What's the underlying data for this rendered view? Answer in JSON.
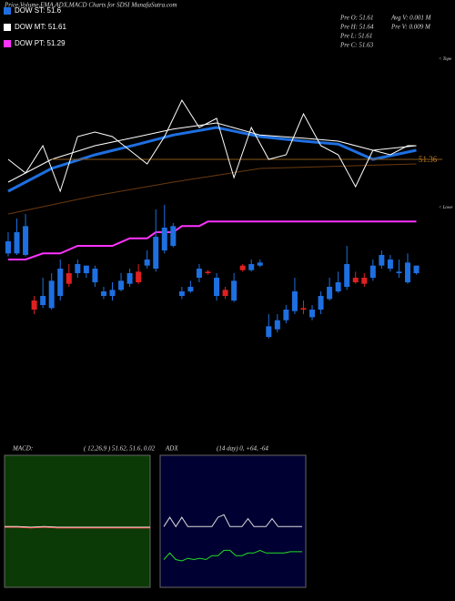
{
  "header": {
    "title": "Price,Volume,EMA,ADX,MACD Charts for SDSI MunafaSutra.com",
    "stats": [
      "Pre  O: 51.61",
      "Pre  H: 51.64",
      "Pre  L: 51.61",
      "Pre  C: 51.63",
      "Avg V: 0.001 M",
      "Pre  V: 0.009 M"
    ]
  },
  "chart_data": [
    {
      "type": "candlestick",
      "ylim": [
        49.94,
        52.52
      ],
      "xlim": [
        -0.94,
        50.4
      ],
      "annotations": [
        "< Tope",
        "< Lowe",
        "51.36"
      ],
      "candles": {
        "up_color": "#1e6fe0",
        "down_color": "#e02020",
        "open": [
          51.09,
          51.09,
          51.08,
          50.78,
          50.75,
          50.73,
          50.81,
          50.96,
          50.96,
          50.96,
          50.9,
          50.81,
          50.81,
          50.85,
          50.89,
          50.97,
          51.01,
          50.99,
          51.11,
          51.14,
          50.81,
          50.84,
          50.93,
          50.97,
          50.81,
          50.85,
          50.78,
          51.01,
          50.98,
          51.01,
          50.54,
          50.59,
          50.65,
          50.71,
          50.73,
          50.67,
          50.72,
          50.79,
          50.84,
          50.87,
          50.93,
          50.93,
          50.93,
          51.01,
          50.99,
          50.96,
          50.9,
          50.96
        ],
        "high": [
          51.23,
          51.32,
          51.35,
          50.81,
          50.93,
          50.96,
          51.05,
          51.02,
          51.05,
          51.01,
          51.01,
          50.87,
          50.9,
          50.96,
          50.99,
          51.02,
          51.11,
          51.38,
          51.41,
          51.29,
          50.87,
          50.91,
          51.02,
          50.98,
          50.96,
          50.87,
          50.96,
          51.02,
          51.05,
          51.05,
          50.69,
          50.69,
          50.75,
          50.93,
          50.78,
          50.75,
          50.84,
          50.93,
          50.97,
          51.14,
          50.97,
          50.96,
          51.05,
          51.11,
          51.08,
          51.05,
          51.09,
          51.01
        ],
        "low": [
          51.07,
          51.08,
          51.07,
          50.69,
          50.73,
          50.72,
          50.78,
          50.87,
          50.93,
          50.93,
          50.87,
          50.79,
          50.78,
          50.84,
          50.87,
          50.89,
          50.99,
          50.97,
          51.09,
          51.13,
          50.79,
          50.83,
          50.9,
          50.95,
          50.78,
          50.79,
          50.77,
          50.97,
          50.97,
          51.0,
          50.53,
          50.57,
          50.63,
          50.69,
          50.69,
          50.65,
          50.69,
          50.78,
          50.83,
          50.85,
          50.89,
          50.87,
          50.91,
          50.99,
          50.97,
          50.93,
          50.89,
          50.95
        ],
        "close": [
          51.17,
          51.23,
          51.27,
          50.72,
          50.81,
          50.91,
          50.99,
          50.89,
          51.02,
          51.01,
          50.99,
          50.84,
          50.85,
          50.91,
          50.96,
          50.9,
          51.05,
          51.2,
          51.26,
          51.27,
          50.84,
          50.87,
          50.99,
          50.96,
          50.93,
          50.81,
          50.91,
          50.98,
          51.02,
          51.03,
          50.61,
          50.65,
          50.72,
          50.84,
          50.72,
          50.72,
          50.81,
          50.87,
          50.9,
          51.02,
          50.9,
          50.89,
          51.01,
          51.08,
          51.05,
          50.97,
          51.03,
          51.01
        ]
      },
      "series": [
        {
          "name": "DOW ST: 51.6",
          "color": "#1e6fe0",
          "width": 3,
          "x": [
            0,
            5,
            10,
            15,
            19,
            24,
            29,
            34,
            38,
            42,
            47
          ],
          "values": [
            51.5,
            51.65,
            51.74,
            51.81,
            51.87,
            51.92,
            51.86,
            51.83,
            51.81,
            51.71,
            51.77
          ]
        },
        {
          "name": "DOW MT: 51.61",
          "color": "#ffffff",
          "width": 1,
          "x": [
            0,
            5,
            10,
            15,
            19,
            24,
            29,
            34,
            38,
            42,
            47
          ],
          "values": [
            51.56,
            51.71,
            51.8,
            51.86,
            51.91,
            51.95,
            51.87,
            51.85,
            51.83,
            51.77,
            51.8
          ]
        },
        {
          "name": "DOW PT: 51.29",
          "color": "#ff33ff",
          "width": 2,
          "x": [
            0,
            2,
            4,
            6,
            8,
            12,
            14,
            16,
            17,
            19,
            20,
            22,
            23,
            47
          ],
          "values": [
            51.05,
            51.05,
            51.09,
            51.09,
            51.14,
            51.14,
            51.19,
            51.19,
            51.23,
            51.23,
            51.27,
            51.27,
            51.3,
            51.3
          ]
        },
        {
          "color": "#8a5a1a",
          "width": 1,
          "x": [
            5,
            50
          ],
          "values": [
            51.71,
            51.71
          ]
        },
        {
          "color": "#6b3a10",
          "width": 1,
          "x": [
            0,
            10,
            19,
            29,
            47
          ],
          "values": [
            51.35,
            51.47,
            51.56,
            51.65,
            51.68
          ]
        },
        {
          "color": "#ffffff",
          "width": 1,
          "x": [
            0,
            2,
            4,
            6,
            8,
            10,
            12,
            14,
            16,
            18,
            20,
            22,
            24,
            26,
            28,
            30,
            32,
            34,
            36,
            38,
            40,
            42,
            44,
            46,
            47
          ],
          "values": [
            51.71,
            51.62,
            51.8,
            51.5,
            51.86,
            51.89,
            51.86,
            51.77,
            51.68,
            51.86,
            52.1,
            51.92,
            51.98,
            51.59,
            51.92,
            51.71,
            51.74,
            52.01,
            51.8,
            51.74,
            51.53,
            51.77,
            51.74,
            51.8,
            51.8
          ]
        }
      ]
    },
    {
      "type": "macd",
      "title": "MACD:",
      "subtitle": "( 12,26,9 ) 51.62, 51.6, 0.02",
      "ylim": [
        -1,
        1
      ],
      "xlim": [
        0,
        11
      ],
      "series": [
        {
          "color": "#ffffff",
          "values": [
            -0.08,
            -0.08,
            -0.09,
            -0.08,
            -0.09,
            -0.09,
            -0.09,
            -0.09,
            -0.09,
            -0.09,
            -0.09,
            -0.09
          ]
        },
        {
          "color": "#ff5555",
          "values": [
            -0.09,
            -0.09,
            -0.1,
            -0.09,
            -0.1,
            -0.1,
            -0.1,
            -0.1,
            -0.1,
            -0.1,
            -0.1,
            -0.1
          ]
        }
      ]
    },
    {
      "type": "adx",
      "title": "ADX",
      "subtitle": "(14 day) 0, +64, -64",
      "ylim": [
        0,
        100
      ],
      "xlim": [
        0,
        23
      ],
      "series": [
        {
          "color": "#dddddd",
          "values": [
            46,
            53,
            46,
            53,
            46,
            46,
            46,
            46,
            46,
            53,
            55,
            46,
            46,
            46,
            52,
            46,
            46,
            46,
            52,
            46,
            46,
            46,
            46,
            46
          ]
        },
        {
          "color": "#22dd22",
          "values": [
            21,
            26,
            21,
            20,
            22,
            21,
            22,
            21,
            24,
            24,
            28,
            28,
            24,
            24,
            26,
            26,
            28,
            26,
            26,
            26,
            26,
            27,
            27,
            27
          ]
        }
      ]
    }
  ]
}
